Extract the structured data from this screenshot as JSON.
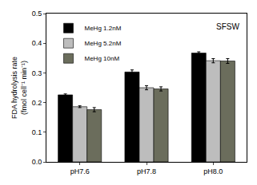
{
  "chart_data": {
    "type": "bar",
    "ylabel": "FDA hydrolysis rate (fmol cell⁻¹ min⁻¹)",
    "annotations": [
      "SFSW"
    ],
    "categories": [
      "pH7.6",
      "pH7.8",
      "pH8.0"
    ],
    "series": [
      {
        "name": "MeHg 1.2nM",
        "color": "#000000",
        "values": [
          0.226,
          0.303,
          0.367
        ],
        "errors": [
          0.003,
          0.007,
          0.004
        ]
      },
      {
        "name": "MeHg 5.2nM",
        "color": "#bdbdbd",
        "values": [
          0.186,
          0.25,
          0.341
        ],
        "errors": [
          0.003,
          0.007,
          0.007
        ]
      },
      {
        "name": "MeHg 10nM",
        "color": "#6b6d5c",
        "values": [
          0.176,
          0.246,
          0.34
        ],
        "errors": [
          0.007,
          0.007,
          0.008
        ]
      }
    ],
    "ylim": [
      0,
      0.5
    ],
    "yticks": [
      {
        "value": 0,
        "label": "0.0"
      },
      {
        "value": 0.1,
        "label": "0.1"
      },
      {
        "value": 0.2,
        "label": "0.2"
      },
      {
        "value": 0.3,
        "label": "0.3"
      },
      {
        "value": 0.4,
        "label": "0.4"
      },
      {
        "value": 0.5,
        "label": "0.5"
      }
    ],
    "grid": false,
    "legend": "upper left"
  }
}
